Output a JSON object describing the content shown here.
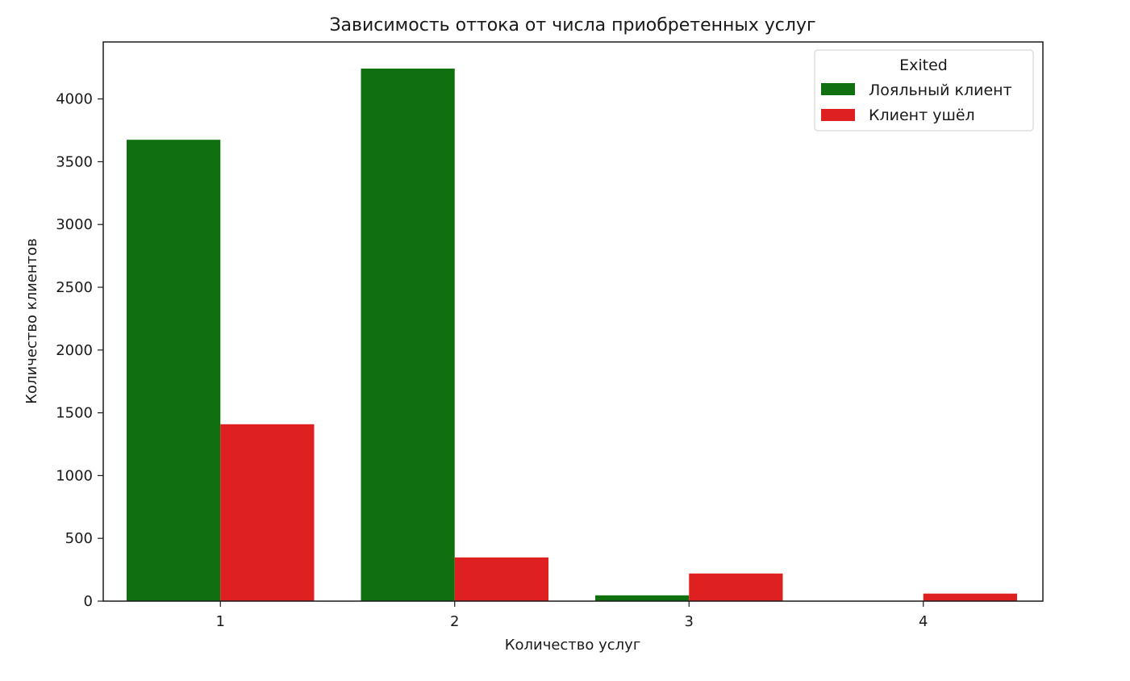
{
  "chart_data": {
    "type": "bar",
    "title": "Зависимость оттока от числа приобретенных услуг",
    "xlabel": "Количество услуг",
    "ylabel": "Количество клиентов",
    "categories": [
      "1",
      "2",
      "3",
      "4"
    ],
    "series": [
      {
        "name": "Лояльный клиент",
        "color": "#107010",
        "values": [
          3675,
          4242,
          46,
          0
        ]
      },
      {
        "name": "Клиент ушёл",
        "color": "#df2020",
        "values": [
          1409,
          348,
          220,
          60
        ]
      }
    ],
    "yticks": [
      "0",
      "500",
      "1000",
      "1500",
      "2000",
      "2500",
      "3000",
      "3500",
      "4000"
    ],
    "ylim": [
      0,
      4454
    ],
    "legend": {
      "title": "Exited",
      "placement": "top-right"
    },
    "grid": false
  }
}
